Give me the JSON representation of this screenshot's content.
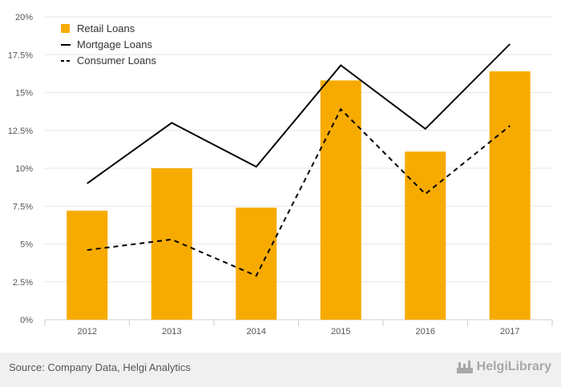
{
  "chart_data": {
    "type": "bar",
    "categories": [
      "2012",
      "2013",
      "2014",
      "2015",
      "2016",
      "2017"
    ],
    "series": [
      {
        "name": "Retail Loans",
        "kind": "bar",
        "color": "#f7ab00",
        "values": [
          7.2,
          10.0,
          7.4,
          15.8,
          11.1,
          16.4
        ]
      },
      {
        "name": "Mortgage Loans",
        "kind": "line",
        "style": "solid",
        "color": "#000000",
        "values": [
          9.0,
          13.0,
          10.1,
          16.8,
          12.6,
          18.2
        ]
      },
      {
        "name": "Consumer Loans",
        "kind": "line",
        "style": "dashed",
        "color": "#000000",
        "values": [
          4.6,
          5.3,
          2.9,
          13.9,
          8.3,
          12.8
        ]
      }
    ],
    "ylim": [
      0,
      20
    ],
    "yticks": [
      "0%",
      "2.5%",
      "5%",
      "7.5%",
      "10%",
      "12.5%",
      "15%",
      "17.5%",
      "20%"
    ],
    "ytick_values": [
      0,
      2.5,
      5,
      7.5,
      10,
      12.5,
      15,
      17.5,
      20
    ],
    "grid": true,
    "legend_position": "top-left"
  },
  "footer": {
    "source": "Source: Company Data, Helgi Analytics",
    "brand": "HelgiLibrary"
  },
  "colors": {
    "bar": "#f7ab00",
    "grid": "#e6e6e6",
    "axis": "#cccccc",
    "footer_bg": "#f0f0f0"
  },
  "icons": {
    "brand_logo": "helgi-logo-icon"
  }
}
